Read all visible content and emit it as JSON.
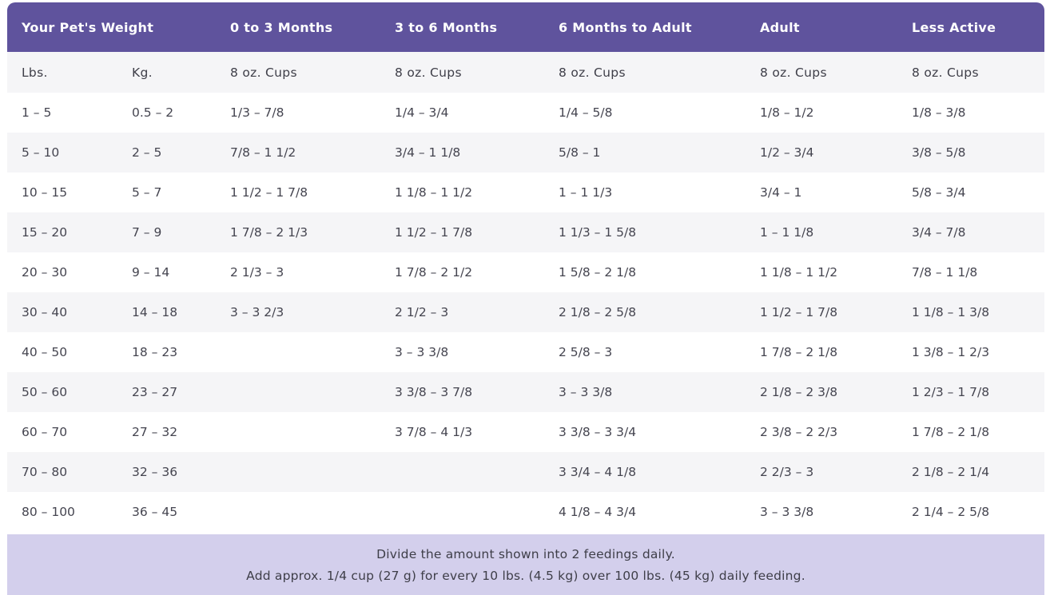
{
  "header": {
    "weight": "Your Pet's Weight",
    "m0_3": "0 to 3 Months",
    "m3_6": "3 to 6 Months",
    "m6_adult": "6 Months to Adult",
    "adult": "Adult",
    "less_active": "Less Active"
  },
  "units": {
    "lbs": "Lbs.",
    "kg": "Kg.",
    "m0_3": "8 oz. Cups",
    "m3_6": "8 oz. Cups",
    "m6_adult": "8 oz. Cups",
    "adult": "8 oz. Cups",
    "less_active": "8 oz. Cups"
  },
  "rows": [
    {
      "lbs": "1 – 5",
      "kg": "0.5 – 2",
      "m0_3": "1/3 – 7/8",
      "m3_6": "1/4 – 3/4",
      "m6_adult": "1/4 – 5/8",
      "adult": "1/8 – 1/2",
      "less_active": "1/8 – 3/8"
    },
    {
      "lbs": "5 – 10",
      "kg": "2 – 5",
      "m0_3": "7/8 – 1 1/2",
      "m3_6": "3/4 – 1 1/8",
      "m6_adult": "5/8 – 1",
      "adult": "1/2 – 3/4",
      "less_active": "3/8 – 5/8"
    },
    {
      "lbs": "10 – 15",
      "kg": "5 – 7",
      "m0_3": "1 1/2 – 1 7/8",
      "m3_6": "1 1/8 – 1 1/2",
      "m6_adult": "1 – 1 1/3",
      "adult": "3/4 – 1",
      "less_active": "5/8 – 3/4"
    },
    {
      "lbs": "15 – 20",
      "kg": "7 – 9",
      "m0_3": "1 7/8 – 2 1/3",
      "m3_6": "1 1/2 – 1 7/8",
      "m6_adult": "1 1/3 – 1 5/8",
      "adult": "1 – 1 1/8",
      "less_active": "3/4 – 7/8"
    },
    {
      "lbs": "20 – 30",
      "kg": "9 – 14",
      "m0_3": "2 1/3 – 3",
      "m3_6": "1 7/8 – 2 1/2",
      "m6_adult": "1 5/8 – 2 1/8",
      "adult": "1 1/8 – 1 1/2",
      "less_active": "7/8 – 1 1/8"
    },
    {
      "lbs": "30 – 40",
      "kg": "14 – 18",
      "m0_3": "3 – 3 2/3",
      "m3_6": "2 1/2 – 3",
      "m6_adult": "2 1/8 – 2 5/8",
      "adult": "1 1/2 – 1 7/8",
      "less_active": "1 1/8 – 1 3/8"
    },
    {
      "lbs": "40 – 50",
      "kg": "18 – 23",
      "m0_3": "",
      "m3_6": "3 – 3 3/8",
      "m6_adult": "2 5/8 – 3",
      "adult": "1 7/8 – 2 1/8",
      "less_active": "1 3/8 – 1 2/3"
    },
    {
      "lbs": "50 – 60",
      "kg": "23 – 27",
      "m0_3": "",
      "m3_6": "3 3/8 – 3 7/8",
      "m6_adult": "3 – 3 3/8",
      "adult": "2 1/8 – 2 3/8",
      "less_active": "1 2/3 – 1 7/8"
    },
    {
      "lbs": "60 – 70",
      "kg": "27 – 32",
      "m0_3": "",
      "m3_6": "3 7/8 – 4 1/3",
      "m6_adult": "3 3/8 – 3 3/4",
      "adult": "2 3/8 – 2 2/3",
      "less_active": "1 7/8 – 2 1/8"
    },
    {
      "lbs": "70 – 80",
      "kg": "32 – 36",
      "m0_3": "",
      "m3_6": "",
      "m6_adult": "3 3/4 – 4 1/8",
      "adult": "2 2/3 – 3",
      "less_active": "2 1/8 – 2 1/4"
    },
    {
      "lbs": "80 – 100",
      "kg": "36 – 45",
      "m0_3": "",
      "m3_6": "",
      "m6_adult": "4 1/8 – 4 3/4",
      "adult": "3 – 3 3/8",
      "less_active": "2 1/4 – 2 5/8"
    }
  ],
  "note": {
    "line1": "Divide the amount shown into 2 feedings daily.",
    "line2": "Add approx. 1/4 cup (27 g) for every 10 lbs. (4.5 kg) over 100 lbs. (45 kg) daily feeding."
  },
  "colors": {
    "header_bg": "#5f539d",
    "note_bg": "#d3cfec",
    "stripe_bg": "#f5f5f7"
  }
}
